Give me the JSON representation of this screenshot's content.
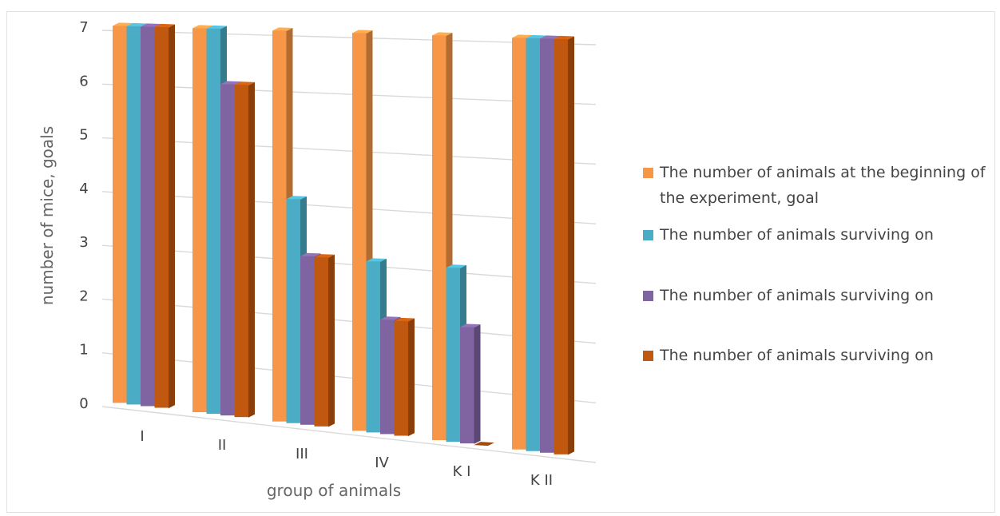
{
  "chart_data": {
    "type": "bar",
    "title": "",
    "xlabel": "group of animals",
    "ylabel": "number of mice, goals",
    "ylim": [
      0,
      7
    ],
    "yticks": [
      0,
      1,
      2,
      3,
      4,
      5,
      6,
      7
    ],
    "categories": [
      "I",
      "II",
      "III",
      "IV",
      "K I",
      "K II"
    ],
    "series": [
      {
        "name": "The number of animals at the beginning of the experiment, goal",
        "color": "#F79646",
        "values": [
          7,
          7,
          7,
          7,
          7,
          7
        ]
      },
      {
        "name": "The number of animals surviving on",
        "color": "#4BACC6",
        "values": [
          7,
          7,
          4,
          3,
          3,
          7
        ]
      },
      {
        "name": "The number of animals surviving on",
        "color": "#8064A2",
        "values": [
          7,
          6,
          3,
          2,
          2,
          7
        ]
      },
      {
        "name": "The number of animals surviving on",
        "color": "#C0580F",
        "values": [
          7,
          6,
          3,
          2,
          0,
          7
        ]
      }
    ],
    "legend_position": "right",
    "grid": true
  }
}
